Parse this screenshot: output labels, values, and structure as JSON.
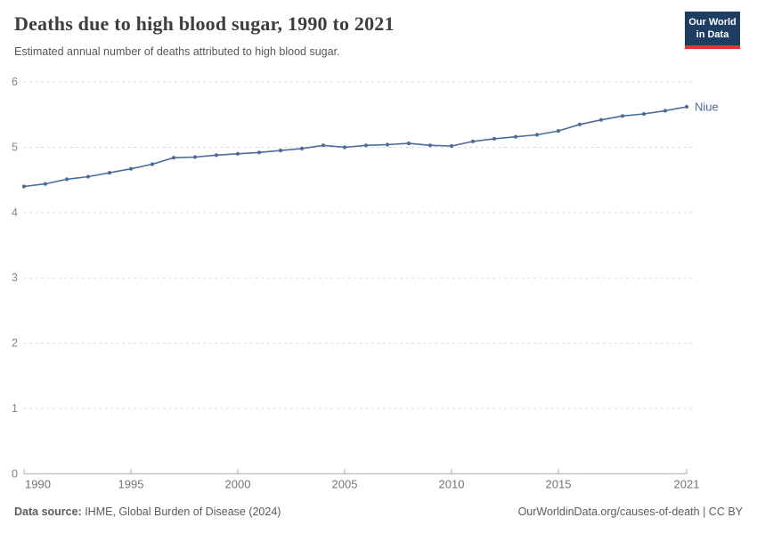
{
  "header": {
    "title": "Deaths due to high blood sugar, 1990 to 2021",
    "subtitle": "Estimated annual number of deaths attributed to high blood sugar.",
    "logo_line1": "Our World",
    "logo_line2": "in Data"
  },
  "chart_data": {
    "type": "line",
    "title": "Deaths due to high blood sugar, 1990 to 2021",
    "subtitle": "Estimated annual number of deaths attributed to high blood sugar.",
    "x": [
      1990,
      1991,
      1992,
      1993,
      1994,
      1995,
      1996,
      1997,
      1998,
      1999,
      2000,
      2001,
      2002,
      2003,
      2004,
      2005,
      2006,
      2007,
      2008,
      2009,
      2010,
      2011,
      2012,
      2013,
      2014,
      2015,
      2016,
      2017,
      2018,
      2019,
      2020,
      2021
    ],
    "series": [
      {
        "name": "Niue",
        "color": "#4C6A9C",
        "values": [
          4.4,
          4.44,
          4.51,
          4.55,
          4.61,
          4.67,
          4.74,
          4.84,
          4.85,
          4.88,
          4.9,
          4.92,
          4.95,
          4.98,
          5.03,
          5.0,
          5.03,
          5.04,
          5.06,
          5.03,
          5.02,
          5.09,
          5.13,
          5.16,
          5.19,
          5.25,
          5.35,
          5.42,
          5.48,
          5.51,
          5.56,
          5.62
        ]
      }
    ],
    "ylim": [
      0,
      6
    ],
    "yticks": [
      0,
      1,
      2,
      3,
      4,
      5,
      6
    ],
    "xticks": [
      1990,
      1995,
      2000,
      2005,
      2010,
      2015,
      2021
    ],
    "grid": "horizontal-dashed",
    "legend_position": "end-of-line-label",
    "xlabel": "",
    "ylabel": ""
  },
  "footer": {
    "source_label": "Data source:",
    "source_text": " IHME, Global Burden of Disease (2024)",
    "link_text": "OurWorldinData.org/causes-of-death | CC BY"
  },
  "colors": {
    "line": "#4C6A9C",
    "grid": "#d6d6d6",
    "axis": "#a8a8a8",
    "ytick_text": "#848484",
    "xtick_text": "#747474",
    "logo_bg": "#1d3d63",
    "logo_bar": "#d93a2d",
    "title_text": "#3d3d3d",
    "subtitle_text": "#575757"
  }
}
